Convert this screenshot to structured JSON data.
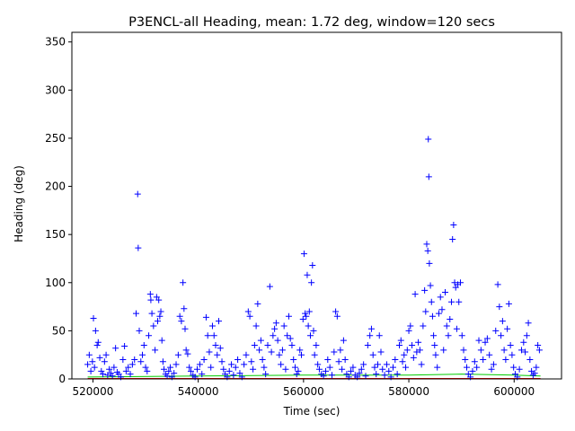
{
  "chart_data": {
    "type": "scatter",
    "title": "P3ENCL-all Heading, mean: 1.72 deg, window=120 secs",
    "xlabel": "Time (sec)",
    "ylabel": "Heading (deg)",
    "xlim": [
      516000,
      609000
    ],
    "ylim": [
      0,
      360
    ],
    "xticks": [
      520000,
      540000,
      560000,
      580000,
      600000
    ],
    "xtick_labels": [
      "520000",
      "540000",
      "560000",
      "580000",
      "600000"
    ],
    "yticks": [
      0,
      50,
      100,
      150,
      200,
      250,
      300,
      350
    ],
    "ytick_labels": [
      "0",
      "50",
      "100",
      "150",
      "200",
      "250",
      "300",
      "350"
    ],
    "grid": false,
    "series": [
      {
        "marker": "+",
        "color": "#0000ff",
        "points": [
          [
            519000,
            15
          ],
          [
            519300,
            25
          ],
          [
            519600,
            8
          ],
          [
            519900,
            18
          ],
          [
            520100,
            63
          ],
          [
            520300,
            12
          ],
          [
            520500,
            50
          ],
          [
            520800,
            35
          ],
          [
            521000,
            38
          ],
          [
            521300,
            22
          ],
          [
            521600,
            8
          ],
          [
            521900,
            5
          ],
          [
            522200,
            18
          ],
          [
            522500,
            25
          ],
          [
            522800,
            4
          ],
          [
            523100,
            10
          ],
          [
            523400,
            6
          ],
          [
            523700,
            3
          ],
          [
            524000,
            12
          ],
          [
            524300,
            32
          ],
          [
            524600,
            7
          ],
          [
            524900,
            5
          ],
          [
            525300,
            2
          ],
          [
            525700,
            20
          ],
          [
            526000,
            34
          ],
          [
            526300,
            8
          ],
          [
            526700,
            12
          ],
          [
            527100,
            5
          ],
          [
            527500,
            15
          ],
          [
            527900,
            20
          ],
          [
            528200,
            68
          ],
          [
            528500,
            192
          ],
          [
            528600,
            136
          ],
          [
            528800,
            50
          ],
          [
            529100,
            18
          ],
          [
            529400,
            25
          ],
          [
            529700,
            35
          ],
          [
            530000,
            12
          ],
          [
            530300,
            8
          ],
          [
            530600,
            45
          ],
          [
            530900,
            88
          ],
          [
            531000,
            82
          ],
          [
            531200,
            68
          ],
          [
            531500,
            55
          ],
          [
            531800,
            30
          ],
          [
            532100,
            85
          ],
          [
            532300,
            60
          ],
          [
            532500,
            82
          ],
          [
            532700,
            65
          ],
          [
            532900,
            70
          ],
          [
            533100,
            40
          ],
          [
            533300,
            18
          ],
          [
            533500,
            10
          ],
          [
            533800,
            5
          ],
          [
            534100,
            3
          ],
          [
            534400,
            8
          ],
          [
            534700,
            12
          ],
          [
            535000,
            2
          ],
          [
            535400,
            6
          ],
          [
            535800,
            15
          ],
          [
            536200,
            25
          ],
          [
            536500,
            65
          ],
          [
            536800,
            60
          ],
          [
            537100,
            100
          ],
          [
            537300,
            73
          ],
          [
            537500,
            52
          ],
          [
            537700,
            30
          ],
          [
            538000,
            26
          ],
          [
            538300,
            12
          ],
          [
            538600,
            8
          ],
          [
            539000,
            4
          ],
          [
            539400,
            2
          ],
          [
            539800,
            10
          ],
          [
            540300,
            15
          ],
          [
            540700,
            5
          ],
          [
            541100,
            20
          ],
          [
            541500,
            64
          ],
          [
            541800,
            45
          ],
          [
            542100,
            28
          ],
          [
            542400,
            12
          ],
          [
            542700,
            55
          ],
          [
            543000,
            45
          ],
          [
            543300,
            35
          ],
          [
            543600,
            25
          ],
          [
            543900,
            60
          ],
          [
            544200,
            32
          ],
          [
            544500,
            18
          ],
          [
            544800,
            10
          ],
          [
            545100,
            5
          ],
          [
            545500,
            2
          ],
          [
            545900,
            8
          ],
          [
            546300,
            15
          ],
          [
            546700,
            4
          ],
          [
            547100,
            12
          ],
          [
            547500,
            20
          ],
          [
            547900,
            6
          ],
          [
            548300,
            2
          ],
          [
            548700,
            15
          ],
          [
            549100,
            25
          ],
          [
            549500,
            70
          ],
          [
            549800,
            65
          ],
          [
            550100,
            18
          ],
          [
            550400,
            10
          ],
          [
            550700,
            35
          ],
          [
            551000,
            55
          ],
          [
            551300,
            78
          ],
          [
            551600,
            30
          ],
          [
            551900,
            40
          ],
          [
            552200,
            20
          ],
          [
            552500,
            12
          ],
          [
            552800,
            5
          ],
          [
            553200,
            35
          ],
          [
            553600,
            96
          ],
          [
            553900,
            28
          ],
          [
            554200,
            45
          ],
          [
            554500,
            52
          ],
          [
            554800,
            58
          ],
          [
            555100,
            40
          ],
          [
            555400,
            25
          ],
          [
            555700,
            15
          ],
          [
            556000,
            30
          ],
          [
            556300,
            55
          ],
          [
            556600,
            10
          ],
          [
            556900,
            45
          ],
          [
            557200,
            65
          ],
          [
            557500,
            42
          ],
          [
            557800,
            35
          ],
          [
            558100,
            20
          ],
          [
            558400,
            12
          ],
          [
            558700,
            5
          ],
          [
            559000,
            8
          ],
          [
            559300,
            30
          ],
          [
            559600,
            25
          ],
          [
            559900,
            62
          ],
          [
            560100,
            130
          ],
          [
            560300,
            68
          ],
          [
            560500,
            65
          ],
          [
            560700,
            108
          ],
          [
            560900,
            55
          ],
          [
            561100,
            70
          ],
          [
            561300,
            45
          ],
          [
            561500,
            100
          ],
          [
            561700,
            118
          ],
          [
            561900,
            50
          ],
          [
            562100,
            25
          ],
          [
            562400,
            35
          ],
          [
            562700,
            15
          ],
          [
            563000,
            10
          ],
          [
            563400,
            5
          ],
          [
            563800,
            3
          ],
          [
            564200,
            8
          ],
          [
            564600,
            20
          ],
          [
            565000,
            12
          ],
          [
            565400,
            4
          ],
          [
            565800,
            28
          ],
          [
            566100,
            70
          ],
          [
            566400,
            65
          ],
          [
            566700,
            18
          ],
          [
            567000,
            30
          ],
          [
            567300,
            10
          ],
          [
            567600,
            40
          ],
          [
            567900,
            20
          ],
          [
            568200,
            5
          ],
          [
            568600,
            2
          ],
          [
            569000,
            8
          ],
          [
            569400,
            12
          ],
          [
            569800,
            4
          ],
          [
            570200,
            2
          ],
          [
            570600,
            6
          ],
          [
            571000,
            10
          ],
          [
            571400,
            15
          ],
          [
            571800,
            3
          ],
          [
            572200,
            35
          ],
          [
            572600,
            45
          ],
          [
            572900,
            52
          ],
          [
            573200,
            25
          ],
          [
            573500,
            12
          ],
          [
            573800,
            5
          ],
          [
            574100,
            15
          ],
          [
            574400,
            45
          ],
          [
            574700,
            28
          ],
          [
            575000,
            10
          ],
          [
            575400,
            4
          ],
          [
            575800,
            15
          ],
          [
            576200,
            8
          ],
          [
            576600,
            2
          ],
          [
            577000,
            12
          ],
          [
            577400,
            20
          ],
          [
            577800,
            5
          ],
          [
            578200,
            35
          ],
          [
            578500,
            40
          ],
          [
            578800,
            18
          ],
          [
            579100,
            25
          ],
          [
            579400,
            12
          ],
          [
            579700,
            30
          ],
          [
            580000,
            50
          ],
          [
            580300,
            55
          ],
          [
            580600,
            35
          ],
          [
            580900,
            22
          ],
          [
            581200,
            88
          ],
          [
            581500,
            28
          ],
          [
            581800,
            38
          ],
          [
            582100,
            30
          ],
          [
            582400,
            15
          ],
          [
            582700,
            55
          ],
          [
            583000,
            92
          ],
          [
            583200,
            70
          ],
          [
            583400,
            140
          ],
          [
            583600,
            133
          ],
          [
            583700,
            249
          ],
          [
            583800,
            210
          ],
          [
            583900,
            120
          ],
          [
            584100,
            97
          ],
          [
            584300,
            80
          ],
          [
            584500,
            65
          ],
          [
            584700,
            45
          ],
          [
            584900,
            35
          ],
          [
            585100,
            25
          ],
          [
            585400,
            12
          ],
          [
            585700,
            68
          ],
          [
            586000,
            85
          ],
          [
            586300,
            72
          ],
          [
            586600,
            30
          ],
          [
            586900,
            90
          ],
          [
            587200,
            55
          ],
          [
            587500,
            45
          ],
          [
            587800,
            62
          ],
          [
            588100,
            80
          ],
          [
            588300,
            145
          ],
          [
            588500,
            160
          ],
          [
            588700,
            100
          ],
          [
            588900,
            95
          ],
          [
            589100,
            52
          ],
          [
            589300,
            98
          ],
          [
            589500,
            80
          ],
          [
            589800,
            100
          ],
          [
            590100,
            45
          ],
          [
            590400,
            30
          ],
          [
            590700,
            20
          ],
          [
            591000,
            12
          ],
          [
            591300,
            5
          ],
          [
            591700,
            2
          ],
          [
            592100,
            8
          ],
          [
            592500,
            18
          ],
          [
            592900,
            12
          ],
          [
            593300,
            40
          ],
          [
            593700,
            30
          ],
          [
            594100,
            20
          ],
          [
            594500,
            38
          ],
          [
            594900,
            42
          ],
          [
            595300,
            25
          ],
          [
            595700,
            10
          ],
          [
            596100,
            15
          ],
          [
            596500,
            50
          ],
          [
            596900,
            98
          ],
          [
            597200,
            75
          ],
          [
            597500,
            45
          ],
          [
            597800,
            60
          ],
          [
            598100,
            30
          ],
          [
            598400,
            20
          ],
          [
            598700,
            52
          ],
          [
            599000,
            78
          ],
          [
            599300,
            35
          ],
          [
            599600,
            25
          ],
          [
            599900,
            12
          ],
          [
            600200,
            5
          ],
          [
            600600,
            2
          ],
          [
            601000,
            10
          ],
          [
            601400,
            30
          ],
          [
            601800,
            38
          ],
          [
            602100,
            28
          ],
          [
            602400,
            45
          ],
          [
            602700,
            58
          ],
          [
            603000,
            20
          ],
          [
            603300,
            8
          ],
          [
            603600,
            4
          ],
          [
            603900,
            6
          ],
          [
            604200,
            12
          ],
          [
            604500,
            35
          ],
          [
            604800,
            30
          ]
        ]
      },
      {
        "color": "#00cc00",
        "points": [
          [
            519000,
            2
          ],
          [
            540000,
            3
          ],
          [
            560000,
            4
          ],
          [
            580000,
            4
          ],
          [
            590000,
            5
          ],
          [
            600000,
            4
          ],
          [
            605000,
            3
          ]
        ]
      },
      {
        "color": "#ff0000",
        "points": [
          [
            519000,
            0.5
          ],
          [
            605000,
            0.5
          ]
        ]
      }
    ]
  }
}
